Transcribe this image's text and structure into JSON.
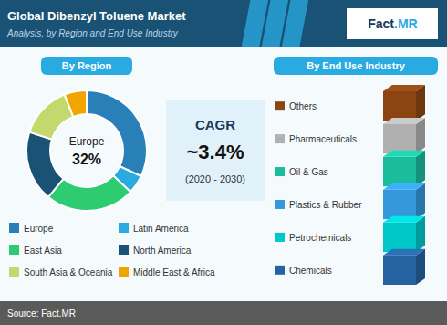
{
  "chart_data": [
    {
      "type": "pie",
      "title": "Global Dibenzyl Toluene Market",
      "subtitle": "Analysis, by Region and End Use Industry",
      "categories": [
        "Europe",
        "Latin America",
        "East Asia",
        "North America",
        "South Asia & Oceania",
        "Middle East & Africa"
      ],
      "values": [
        32,
        5,
        24,
        19,
        14,
        6
      ],
      "colors": [
        "#2980b9",
        "#29abe2",
        "#2ecc71",
        "#1a5276",
        "#c5d86d",
        "#f0a500"
      ],
      "legend": "bottom",
      "annotations": [
        "By Region",
        "Europe",
        "32%",
        "CAGR",
        "~3.4%",
        "(2020 - 2030)",
        "Fact",
        ".MR",
        "Source: Fact.MR"
      ]
    },
    {
      "type": "legend",
      "title": "By End Use Industry",
      "categories": [
        "Others",
        "Pharmaceuticals",
        "Oil & Gas",
        "Plastics & Rubber",
        "Petrochemicals",
        "Chemicals"
      ],
      "colors": [
        "#8b4513",
        "#b0b0b0",
        "#1abc9c",
        "#3498db",
        "#00c8c8",
        "#2563a0"
      ]
    }
  ]
}
